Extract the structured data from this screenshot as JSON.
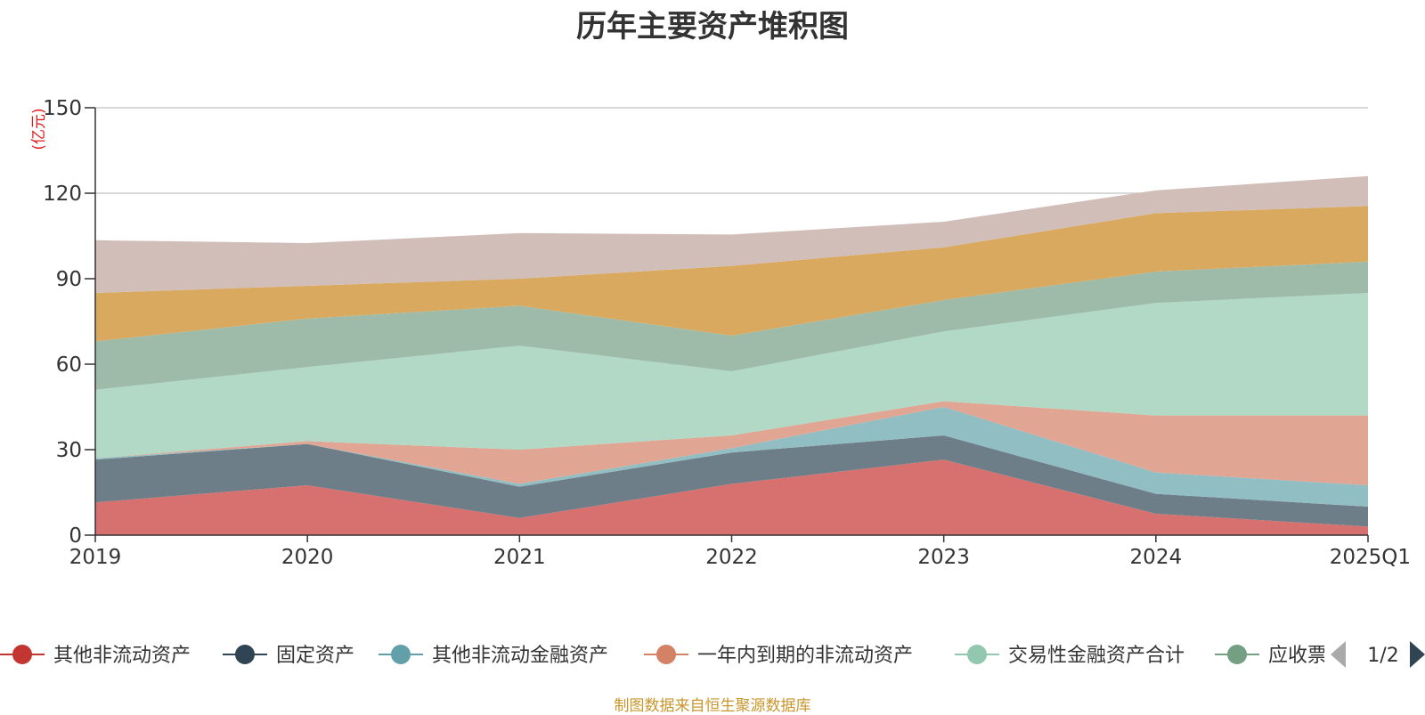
{
  "title": "历年主要资产堆积图",
  "source_note": "制图数据来自恒生聚源数据库",
  "legend": {
    "items": [
      {
        "label": "其他非流动资产",
        "color": "#c23531"
      },
      {
        "label": "固定资产",
        "color": "#2f4554"
      },
      {
        "label": "其他非流动金融资产",
        "color": "#61a0a8"
      },
      {
        "label": "一年内到期的非流动资产",
        "color": "#d48265"
      },
      {
        "label": "交易性金融资产合计",
        "color": "#91c7ae"
      },
      {
        "label": "应收票据",
        "color": "#749f83"
      }
    ],
    "page_text": "1/2",
    "prev_icon": "triangle-left-icon",
    "next_icon": "triangle-right-icon"
  },
  "chart_data": {
    "type": "area",
    "stacked": true,
    "ylabel": "(亿元)",
    "ylim": [
      0,
      150
    ],
    "yticks": [
      0,
      30,
      60,
      90,
      120,
      150
    ],
    "grid": true,
    "categories": [
      "2019",
      "2020",
      "2021",
      "2022",
      "2023",
      "2024",
      "2025Q1"
    ],
    "series": [
      {
        "name": "其他非流动资产",
        "color": "#d67170",
        "values": [
          11.5,
          17.5,
          6,
          18,
          26.5,
          7.5,
          3
        ]
      },
      {
        "name": "固定资产",
        "color": "#6e7e88",
        "values": [
          15,
          14.5,
          11,
          11,
          8.5,
          7,
          7
        ]
      },
      {
        "name": "其他非流动金融资产",
        "color": "#91bec3",
        "values": [
          0.5,
          0,
          1,
          1.5,
          10,
          7.5,
          7.5
        ]
      },
      {
        "name": "一年内到期的非流动资产",
        "color": "#e0a593",
        "values": [
          0,
          1,
          12,
          4.5,
          2,
          20,
          24.5
        ]
      },
      {
        "name": "交易性金融资产合计",
        "color": "#b1d9c6",
        "values": [
          24,
          26,
          36.5,
          22.5,
          24.5,
          39.5,
          43
        ]
      },
      {
        "name": "",
        "color": "#9dbba8",
        "values": [
          17,
          17,
          14,
          12.5,
          11,
          11,
          11
        ]
      },
      {
        "name": "",
        "color": "#d9a95f",
        "values": [
          17,
          11.5,
          9.5,
          24.5,
          18.5,
          20.5,
          19.5
        ]
      },
      {
        "name": "",
        "color": "#d1beb9",
        "values": [
          18.5,
          15,
          16,
          11,
          9,
          8,
          10.5
        ]
      }
    ]
  }
}
